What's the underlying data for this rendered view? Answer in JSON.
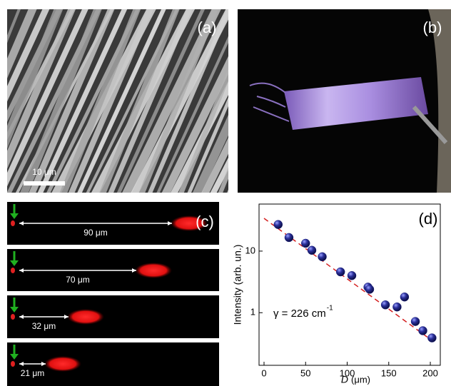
{
  "panels": {
    "a": {
      "label": "(a)",
      "scale_bar": "10 μm"
    },
    "b": {
      "label": "(b)"
    },
    "c": {
      "label": "(c)",
      "distances": [
        "90 μm",
        "70 μm",
        "32 μm",
        "21 μm"
      ]
    }
  },
  "chart_data": {
    "type": "scatter",
    "label": "(d)",
    "y_label": "Intensity (arb. un.)",
    "x_label_symbol": "D",
    "x_label_unit": "(μm)",
    "annotation": "γ = 226 cm",
    "annotation_sup": "-1",
    "x": [
      17,
      30,
      50,
      57.5,
      70,
      92,
      105.6,
      125,
      127,
      146,
      160,
      169,
      182,
      191,
      202
    ],
    "values": [
      27,
      16.6,
      13.4,
      10.3,
      8.1,
      4.6,
      4.0,
      2.6,
      2.4,
      1.34,
      1.24,
      1.8,
      0.72,
      0.51,
      0.39
    ],
    "color": "#1a1f7a",
    "fit": {
      "x": [
        0,
        200
      ],
      "values": [
        34,
        0.37
      ],
      "color": "#d42020"
    },
    "xlim": [
      -6,
      212
    ],
    "xticks": [
      0,
      50,
      100,
      150,
      200
    ],
    "ylim": [
      0.14,
      58
    ],
    "yticks": [
      1,
      10
    ],
    "log_y": true
  }
}
